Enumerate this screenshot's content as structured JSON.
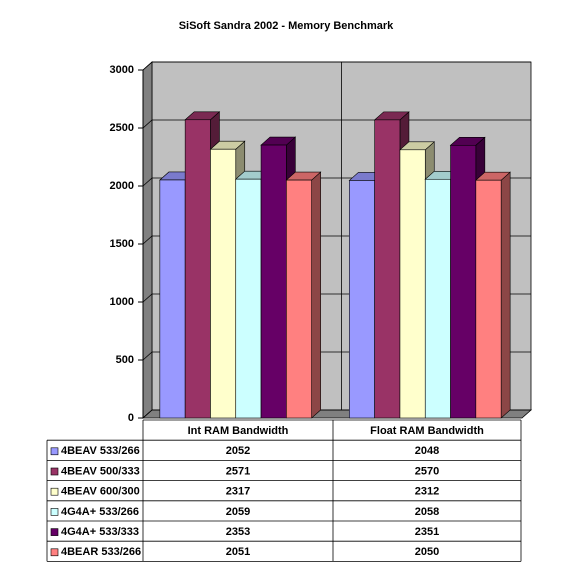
{
  "chart_data": {
    "type": "bar",
    "title": "SiSoft Sandra 2002 - Memory Benchmark",
    "categories": [
      "Int RAM Bandwidth",
      "Float RAM Bandwidth"
    ],
    "series": [
      {
        "name": "4BEAV 533/266",
        "color": "#9999ff",
        "values": [
          2052,
          2048
        ]
      },
      {
        "name": "4BEAV 500/333",
        "color": "#993366",
        "values": [
          2571,
          2570
        ]
      },
      {
        "name": "4BEAV 600/300",
        "color": "#ffffcc",
        "values": [
          2317,
          2312
        ]
      },
      {
        "name": "4G4A+ 533/266",
        "color": "#ccffff",
        "values": [
          2059,
          2058
        ]
      },
      {
        "name": "4G4A+ 533/333",
        "color": "#660066",
        "values": [
          2353,
          2351
        ]
      },
      {
        "name": "4BEAR 533/266",
        "color": "#ff8080",
        "values": [
          2051,
          2050
        ]
      }
    ],
    "ylim": [
      0,
      3000
    ],
    "yticks": [
      0,
      500,
      1000,
      1500,
      2000,
      2500,
      3000
    ],
    "grid": true
  }
}
